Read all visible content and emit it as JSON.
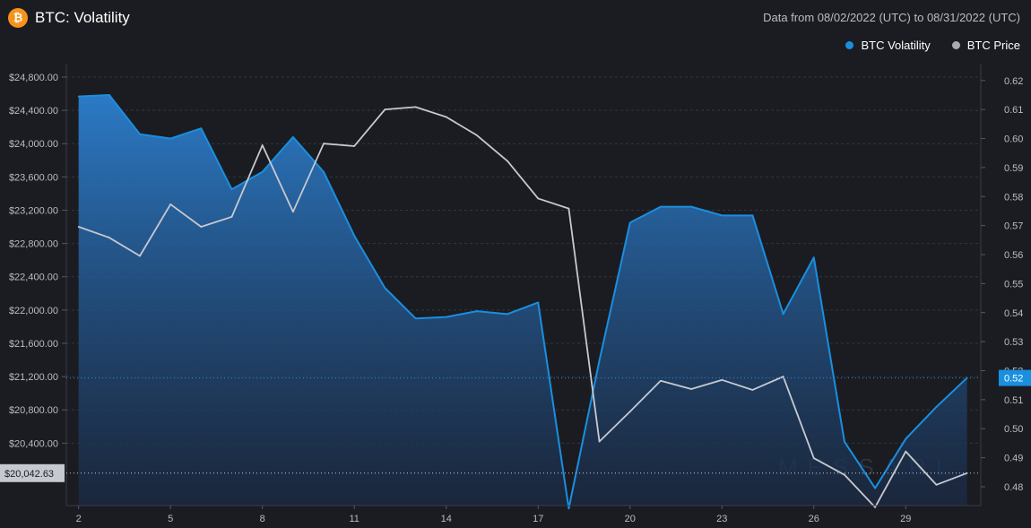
{
  "header": {
    "logo_glyph": "₿",
    "title": "BTC: Volatility",
    "range_prefix": "Data from ",
    "range_start": "08/02/2022 (UTC)",
    "range_mid": " to ",
    "range_end": "08/31/2022 (UTC)"
  },
  "legend": [
    {
      "label": "BTC Volatility",
      "color": "#1a8fe0"
    },
    {
      "label": "BTC Price",
      "color": "#b6b8c0"
    }
  ],
  "watermark": "MESSARI",
  "price_marker_label": "$20,042.63",
  "volatility_marker_label": "0.52",
  "chart_data": {
    "type": "line",
    "x": [
      2,
      3,
      4,
      5,
      6,
      7,
      8,
      9,
      10,
      11,
      12,
      13,
      14,
      15,
      16,
      17,
      18,
      19,
      20,
      21,
      22,
      23,
      24,
      25,
      26,
      27,
      28,
      29,
      30,
      31
    ],
    "x_ticks": [
      "2",
      "5",
      "8",
      "11",
      "14",
      "17",
      "20",
      "23",
      "26",
      "29"
    ],
    "left_axis_ticks": [
      "$20,400.00",
      "$20,800.00",
      "$21,200.00",
      "$21,600.00",
      "$22,000.00",
      "$22,400.00",
      "$22,800.00",
      "$23,200.00",
      "$23,600.00",
      "$24,000.00",
      "$24,400.00",
      "$24,800.00"
    ],
    "right_axis_ticks": [
      "0.48",
      "0.49",
      "0.50",
      "0.51",
      "0.52",
      "0.53",
      "0.54",
      "0.55",
      "0.56",
      "0.57",
      "0.58",
      "0.59",
      "0.60",
      "0.61",
      "0.62"
    ],
    "left_ylim": [
      19650,
      24950
    ],
    "right_ylim": [
      0.4735,
      0.6255
    ],
    "series": [
      {
        "name": "BTC Volatility",
        "axis": "right",
        "color": "#1a8fe0",
        "values": [
          0.6145,
          0.615,
          0.6015,
          0.6,
          0.6035,
          0.5825,
          0.5885,
          0.6005,
          0.5885,
          0.5665,
          0.5485,
          0.538,
          0.5385,
          0.5405,
          0.5395,
          0.5435,
          0.4725,
          0.5235,
          0.571,
          0.5765,
          0.5765,
          0.5735,
          0.5735,
          0.5395,
          0.559,
          0.4955,
          0.4795,
          0.4965,
          0.5075,
          0.5175
        ]
      },
      {
        "name": "BTC Price",
        "axis": "left",
        "color": "#c7c9d0",
        "values": [
          23000,
          22870,
          22650,
          23270,
          23000,
          23120,
          23980,
          23180,
          24000,
          23970,
          24410,
          24440,
          24320,
          24100,
          23790,
          23340,
          23220,
          20420,
          20780,
          21150,
          21050,
          21160,
          21040,
          21200,
          20220,
          20020,
          19630,
          20300,
          19900,
          20040
        ]
      }
    ]
  }
}
